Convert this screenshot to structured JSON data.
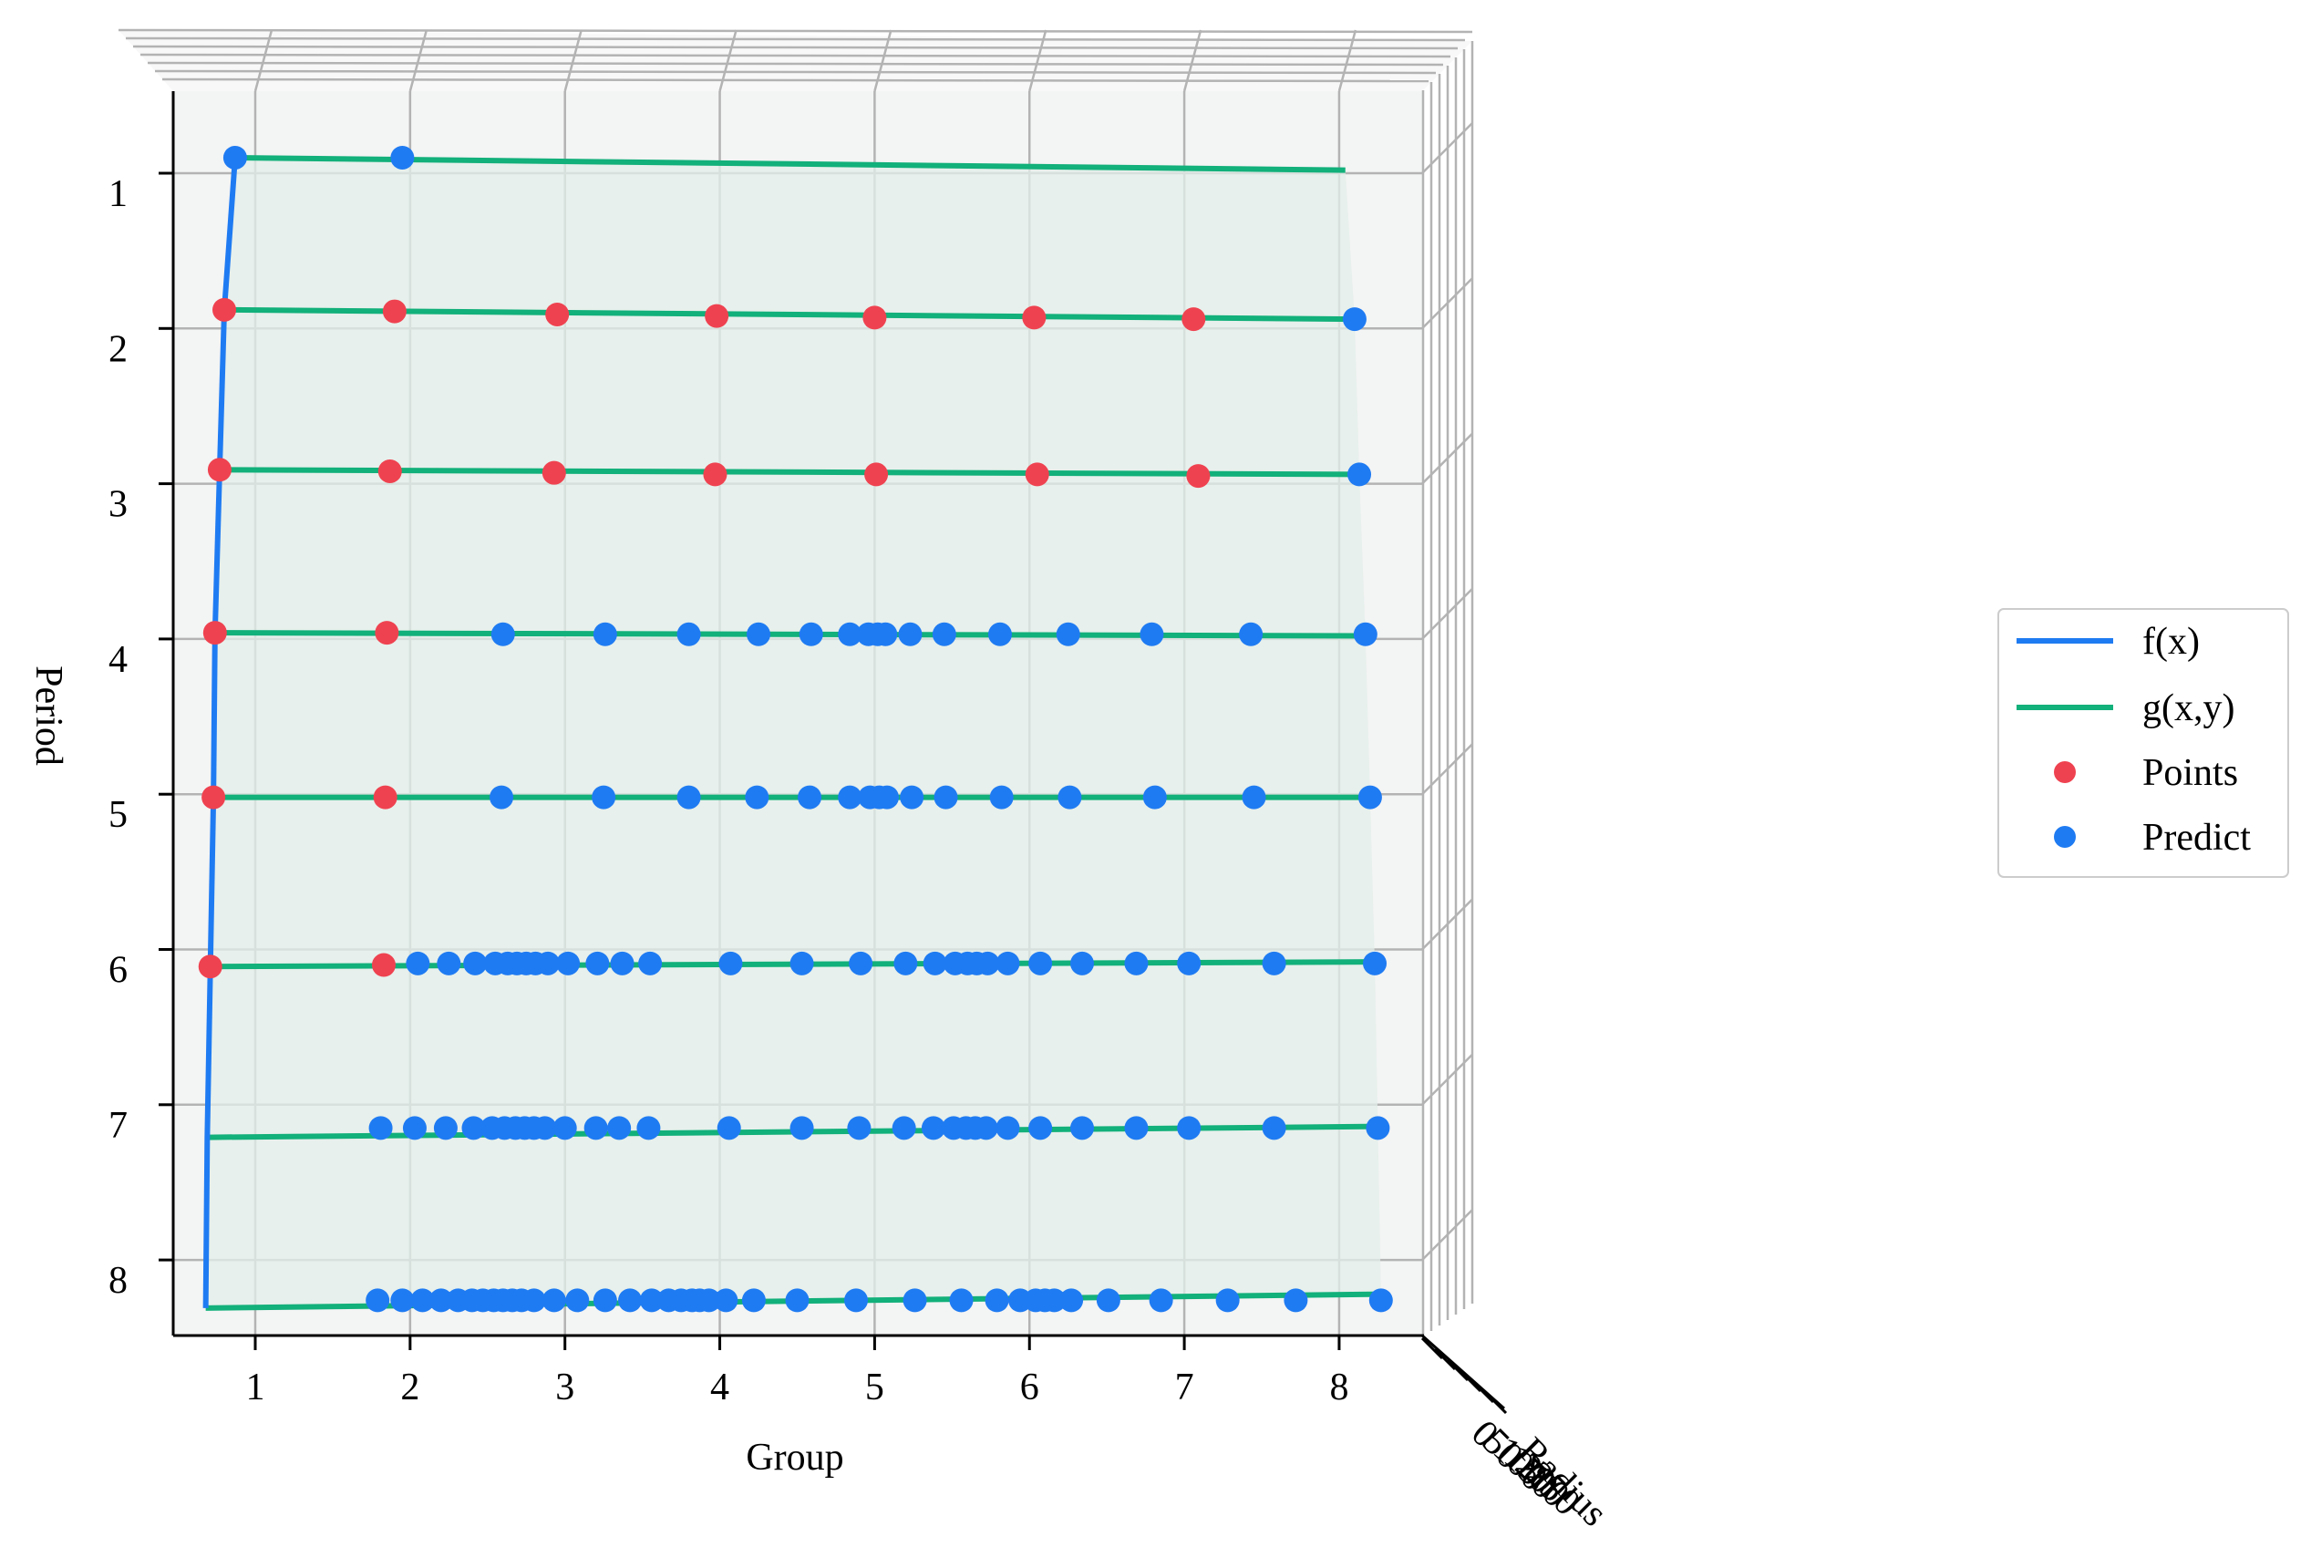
{
  "colors": {
    "f_line": "#1f7bf2",
    "g_line": "#12b07a",
    "points": "#ef4250",
    "predict": "#1f7bf2",
    "pane": "#f3f4f4",
    "surface": "#e3efea",
    "grid": "#b3b3b3",
    "axis": "#000000"
  },
  "chart_data": {
    "type": "scatter",
    "projection": "3d",
    "xlabel": "Group",
    "ylabel": "Period",
    "zlabel": "Radius",
    "x_ticks": [
      "1",
      "2",
      "3",
      "4",
      "5",
      "6",
      "7",
      "8"
    ],
    "y_ticks": [
      "1",
      "2",
      "3",
      "4",
      "5",
      "6",
      "7",
      "8"
    ],
    "z_ticks": [
      "0",
      "50",
      "100",
      "150",
      "200",
      "250"
    ],
    "xlim": [
      0.45,
      8.55
    ],
    "ylim": [
      0.45,
      8.5
    ],
    "grid": true,
    "legend_position": "right",
    "legend": [
      "f(x)",
      "g(x,y)",
      "Points",
      "Predict"
    ],
    "series": [
      {
        "name": "f(x)",
        "type": "line",
        "points": [
          [
            0.87,
            0.9
          ],
          [
            0.8,
            1.88
          ],
          [
            0.77,
            2.91
          ],
          [
            0.74,
            3.96
          ],
          [
            0.73,
            5.02
          ],
          [
            0.71,
            6.11
          ],
          [
            0.69,
            7.21
          ],
          [
            0.68,
            8.31
          ]
        ]
      },
      {
        "name": "g(x,y)",
        "type": "lines",
        "lines": [
          [
            [
              0.87,
              0.9
            ],
            [
              8.04,
              0.98
            ]
          ],
          [
            [
              0.8,
              1.88
            ],
            [
              8.1,
              1.94
            ]
          ],
          [
            [
              0.77,
              2.91
            ],
            [
              8.13,
              2.94
            ]
          ],
          [
            [
              0.74,
              3.96
            ],
            [
              8.17,
              3.98
            ]
          ],
          [
            [
              0.73,
              5.02
            ],
            [
              8.2,
              5.02
            ]
          ],
          [
            [
              0.71,
              6.11
            ],
            [
              8.23,
              6.08
            ]
          ],
          [
            [
              0.69,
              7.21
            ],
            [
              8.25,
              7.14
            ]
          ],
          [
            [
              0.68,
              8.31
            ],
            [
              8.27,
              8.22
            ]
          ]
        ]
      },
      {
        "name": "Points",
        "type": "scatter",
        "points": [
          [
            0.8,
            1.88
          ],
          [
            1.9,
            1.89
          ],
          [
            2.95,
            1.91
          ],
          [
            3.98,
            1.92
          ],
          [
            5.0,
            1.93
          ],
          [
            6.03,
            1.93
          ],
          [
            7.06,
            1.94
          ],
          [
            0.77,
            2.91
          ],
          [
            1.87,
            2.92
          ],
          [
            2.93,
            2.93
          ],
          [
            3.97,
            2.94
          ],
          [
            5.01,
            2.94
          ],
          [
            6.05,
            2.94
          ],
          [
            7.09,
            2.95
          ],
          [
            0.74,
            3.96
          ],
          [
            1.85,
            3.96
          ],
          [
            0.73,
            5.02
          ],
          [
            1.84,
            5.02
          ],
          [
            0.71,
            6.11
          ],
          [
            1.83,
            6.1
          ]
        ]
      },
      {
        "name": "Predict",
        "type": "scatter",
        "groups": [
          {
            "y": 0.9,
            "x": [
              0.87,
              1.95
            ]
          },
          {
            "y": 1.94,
            "x": [
              8.1
            ]
          },
          {
            "y": 2.94,
            "x": [
              8.13
            ]
          },
          {
            "y": 3.97,
            "x": [
              2.6,
              3.26,
              3.8,
              4.25,
              4.59,
              4.84,
              4.96,
              5.02,
              5.07,
              5.23,
              5.45,
              5.81,
              6.25,
              6.79,
              7.43,
              8.17
            ]
          },
          {
            "y": 5.02,
            "x": [
              2.59,
              3.25,
              3.8,
              4.24,
              4.58,
              4.84,
              4.97,
              5.03,
              5.08,
              5.24,
              5.46,
              5.82,
              6.26,
              6.81,
              7.45,
              8.2
            ]
          },
          {
            "y": 6.09,
            "x": [
              2.05,
              2.25,
              2.42,
              2.55,
              2.63,
              2.69,
              2.75,
              2.81,
              2.89,
              3.02,
              3.21,
              3.37,
              3.55,
              4.07,
              4.53,
              4.91,
              5.2,
              5.39,
              5.52,
              5.6,
              5.66,
              5.73,
              5.86,
              6.07,
              6.34,
              6.69,
              7.03,
              7.58,
              8.23
            ]
          },
          {
            "y": 7.15,
            "x": [
              1.81,
              2.03,
              2.23,
              2.41,
              2.53,
              2.61,
              2.68,
              2.74,
              2.8,
              2.87,
              3.0,
              3.2,
              3.35,
              3.54,
              4.06,
              4.53,
              4.9,
              5.19,
              5.38,
              5.51,
              5.59,
              5.65,
              5.72,
              5.86,
              6.07,
              6.34,
              6.69,
              7.03,
              7.58,
              8.25
            ]
          },
          {
            "y": 8.26,
            "x": [
              1.79,
              1.95,
              2.08,
              2.2,
              2.31,
              2.4,
              2.47,
              2.54,
              2.6,
              2.66,
              2.72,
              2.8,
              2.93,
              3.08,
              3.26,
              3.42,
              3.56,
              3.67,
              3.75,
              3.82,
              3.87,
              3.93,
              4.04,
              4.22,
              4.5,
              4.88,
              5.26,
              5.56,
              5.79,
              5.94,
              6.04,
              6.1,
              6.16,
              6.27,
              6.51,
              6.85,
              7.28,
              7.72,
              8.27
            ]
          }
        ]
      }
    ]
  }
}
